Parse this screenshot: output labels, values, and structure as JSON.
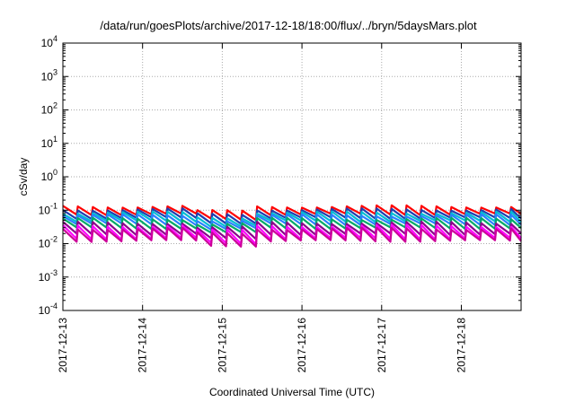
{
  "chart_data": {
    "type": "line",
    "title": "/data/run/goesPlots/archive/2017-12-18/18:00/flux/../bryn/5daysMars.plot",
    "xlabel": "Coordinated Universal Time (UTC)",
    "ylabel": "cSv/day",
    "y_scale": "log",
    "ylim": [
      0.0001,
      10000
    ],
    "y_ticks": [
      {
        "base": "10",
        "exp": "-4"
      },
      {
        "base": "10",
        "exp": "-3"
      },
      {
        "base": "10",
        "exp": "-2"
      },
      {
        "base": "10",
        "exp": "-1"
      },
      {
        "base": "10",
        "exp": "0"
      },
      {
        "base": "10",
        "exp": "1"
      },
      {
        "base": "10",
        "exp": "2"
      },
      {
        "base": "10",
        "exp": "3"
      },
      {
        "base": "10",
        "exp": "4"
      }
    ],
    "xlim": [
      "2017-12-13",
      "2017-12-18T18:00"
    ],
    "x_ticks": [
      "2017-12-13",
      "2017-12-14",
      "2017-12-15",
      "2017-12-16",
      "2017-12-17",
      "2017-12-18"
    ],
    "grid": true,
    "series_style": "sawtooth; values repeat every ~4.5 hours; a small drop near 2017-12-15",
    "series": [
      {
        "color": "#ff0000",
        "peak": 0.13,
        "base": 0.075
      },
      {
        "color": "#1f3fb0",
        "peak": 0.105,
        "base": 0.058
      },
      {
        "color": "#00bcd4",
        "peak": 0.085,
        "base": 0.047
      },
      {
        "color": "#2a7fff",
        "peak": 0.07,
        "base": 0.038
      },
      {
        "color": "#00aa66",
        "peak": 0.055,
        "base": 0.029
      },
      {
        "color": "#8b008b",
        "peak": 0.042,
        "base": 0.019
      },
      {
        "color": "#ff00ff",
        "peak": 0.034,
        "base": 0.014
      },
      {
        "color": "#cc0099",
        "peak": 0.028,
        "base": 0.012
      }
    ]
  }
}
